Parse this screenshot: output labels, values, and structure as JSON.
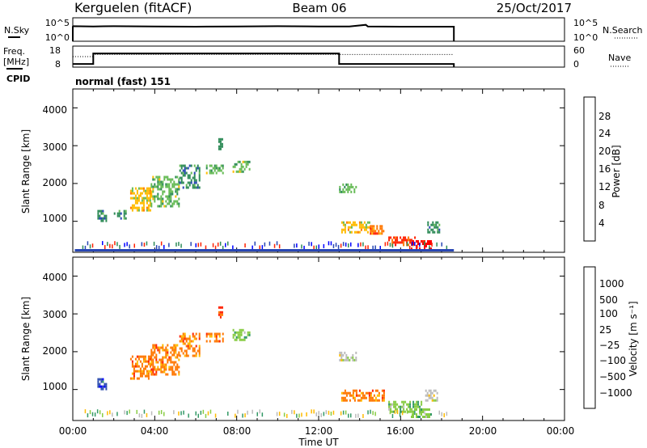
{
  "header": {
    "station": "Kerguelen (fitACF)",
    "beam": "Beam 06",
    "date": "25/Oct/2017"
  },
  "params": {
    "nsky_label": "N.Sky",
    "nsearch_label": "N.Search",
    "freq_label_line1": "Freq.",
    "freq_label_line2": "[MHz]",
    "nave_label": "Nave",
    "cpid_label": "CPID",
    "cpid_text": "normal (fast) 151",
    "noise_ticks": [
      "10^5",
      "10^0"
    ],
    "noise_right_ticks": [
      "10^5",
      "10^0"
    ],
    "freq_ticks": [
      "18",
      "8"
    ],
    "nave_ticks": [
      "60",
      "0"
    ]
  },
  "colors": {
    "power_scale": [
      "#0000ff",
      "#2746b4",
      "#2e8b57",
      "#66bb55",
      "#ffbb00",
      "#ff7700",
      "#ff2200",
      "#ff0000"
    ],
    "velocity_scale": [
      "#0000ff",
      "#3050b0",
      "#339966",
      "#88cc44",
      "#bbbbbb",
      "#ffbb00",
      "#ff7700",
      "#ff2200",
      "#ff0000"
    ]
  },
  "chart_data": [
    {
      "type": "line",
      "name": "noise-panel",
      "series": [
        {
          "name": "N.Sky",
          "x": [
            0,
            0,
            0.01,
            1.0,
            2.0,
            4.0,
            6.0,
            8.0,
            10.0,
            12.0,
            13.5,
            14.3,
            14.4,
            16.0,
            18.6,
            18.6
          ],
          "y_level": [
            0,
            0.62,
            0.64,
            0.63,
            0.64,
            0.63,
            0.62,
            0.63,
            0.64,
            0.63,
            0.63,
            0.7,
            0.63,
            0.62,
            0.62,
            0
          ]
        },
        {
          "name": "N.Search",
          "x": [],
          "y_level": []
        }
      ]
    },
    {
      "type": "line",
      "name": "frequency-panel",
      "xlim": [
        0,
        24
      ],
      "series": [
        {
          "name": "Freq.",
          "x": [
            0,
            1.0,
            1.0,
            13.0,
            13.0,
            18.6
          ],
          "y": [
            9.5,
            9.5,
            14.5,
            14.5,
            9.5,
            9.5
          ]
        },
        {
          "name": "Nave",
          "x": [
            0,
            1.0,
            1.0,
            18.6
          ],
          "y": [
            30,
            30,
            36,
            36
          ]
        }
      ]
    },
    {
      "type": "heatmap",
      "name": "power-panel",
      "xlabel": "",
      "ylabel": "Slant Range [km]",
      "xlim": [
        0,
        24
      ],
      "ylim": [
        180,
        4500
      ],
      "yticks": [
        "1000",
        "2000",
        "3000",
        "4000"
      ],
      "colorbar_label": "Power [dB]",
      "colorbar_ticks": [
        "28",
        "24",
        "20",
        "16",
        "12",
        "8",
        "4"
      ],
      "regions": [
        {
          "t": [
            1.2,
            1.6
          ],
          "r": [
            1000,
            1300
          ],
          "level": 2
        },
        {
          "t": [
            2.0,
            2.6
          ],
          "r": [
            1100,
            1300
          ],
          "level": 2
        },
        {
          "t": [
            2.8,
            3.8
          ],
          "r": [
            1300,
            1900
          ],
          "level": 4
        },
        {
          "t": [
            3.8,
            5.2
          ],
          "r": [
            1400,
            2200
          ],
          "level": 3
        },
        {
          "t": [
            5.2,
            6.2
          ],
          "r": [
            1900,
            2500
          ],
          "level": 2
        },
        {
          "t": [
            6.5,
            7.3
          ],
          "r": [
            2300,
            2500
          ],
          "level": 3
        },
        {
          "t": [
            7.1,
            7.3
          ],
          "r": [
            2900,
            3200
          ],
          "level": 2
        },
        {
          "t": [
            7.8,
            8.6
          ],
          "r": [
            2300,
            2600
          ],
          "level": 3
        },
        {
          "t": [
            13.0,
            13.8
          ],
          "r": [
            1800,
            2000
          ],
          "level": 3
        },
        {
          "t": [
            13.1,
            14.6
          ],
          "r": [
            700,
            1000
          ],
          "level": 4
        },
        {
          "t": [
            14.5,
            15.2
          ],
          "r": [
            700,
            900
          ],
          "level": 5
        },
        {
          "t": [
            15.4,
            16.7
          ],
          "r": [
            400,
            600
          ],
          "level": 6
        },
        {
          "t": [
            16.5,
            17.5
          ],
          "r": [
            300,
            500
          ],
          "level": 7
        },
        {
          "t": [
            17.3,
            17.9
          ],
          "r": [
            700,
            1000
          ],
          "level": 2
        }
      ]
    },
    {
      "type": "heatmap",
      "name": "velocity-panel",
      "xlabel": "Time UT",
      "ylabel": "Slant Range [km]",
      "xlim": [
        0,
        24
      ],
      "ylim": [
        180,
        4500
      ],
      "xticks": [
        "00:00",
        "04:00",
        "08:00",
        "12:00",
        "16:00",
        "20:00",
        "00:00"
      ],
      "yticks": [
        "1000",
        "2000",
        "3000",
        "4000"
      ],
      "colorbar_label": "Velocity [m s⁻¹]",
      "colorbar_ticks": [
        "1000",
        "500",
        "100",
        "25",
        "−25",
        "−100",
        "−500",
        "−1000"
      ],
      "regions": [
        {
          "t": [
            1.2,
            1.6
          ],
          "r": [
            1000,
            1300
          ],
          "level": 1
        },
        {
          "t": [
            2.8,
            3.8
          ],
          "r": [
            1300,
            1900
          ],
          "level": 6
        },
        {
          "t": [
            3.8,
            5.2
          ],
          "r": [
            1400,
            2200
          ],
          "level": 6
        },
        {
          "t": [
            5.2,
            6.2
          ],
          "r": [
            1900,
            2500
          ],
          "level": 6
        },
        {
          "t": [
            6.5,
            7.3
          ],
          "r": [
            2300,
            2500
          ],
          "level": 6
        },
        {
          "t": [
            7.1,
            7.3
          ],
          "r": [
            2900,
            3200
          ],
          "level": 7
        },
        {
          "t": [
            7.8,
            8.6
          ],
          "r": [
            2300,
            2600
          ],
          "level": 3
        },
        {
          "t": [
            13.0,
            13.8
          ],
          "r": [
            1800,
            2000
          ],
          "level": 4
        },
        {
          "t": [
            13.1,
            15.2
          ],
          "r": [
            700,
            1000
          ],
          "level": 6
        },
        {
          "t": [
            15.4,
            17.0
          ],
          "r": [
            400,
            700
          ],
          "level": 3
        },
        {
          "t": [
            16.5,
            17.5
          ],
          "r": [
            300,
            500
          ],
          "level": 3
        },
        {
          "t": [
            17.2,
            17.8
          ],
          "r": [
            700,
            1000
          ],
          "level": 4
        }
      ]
    }
  ]
}
